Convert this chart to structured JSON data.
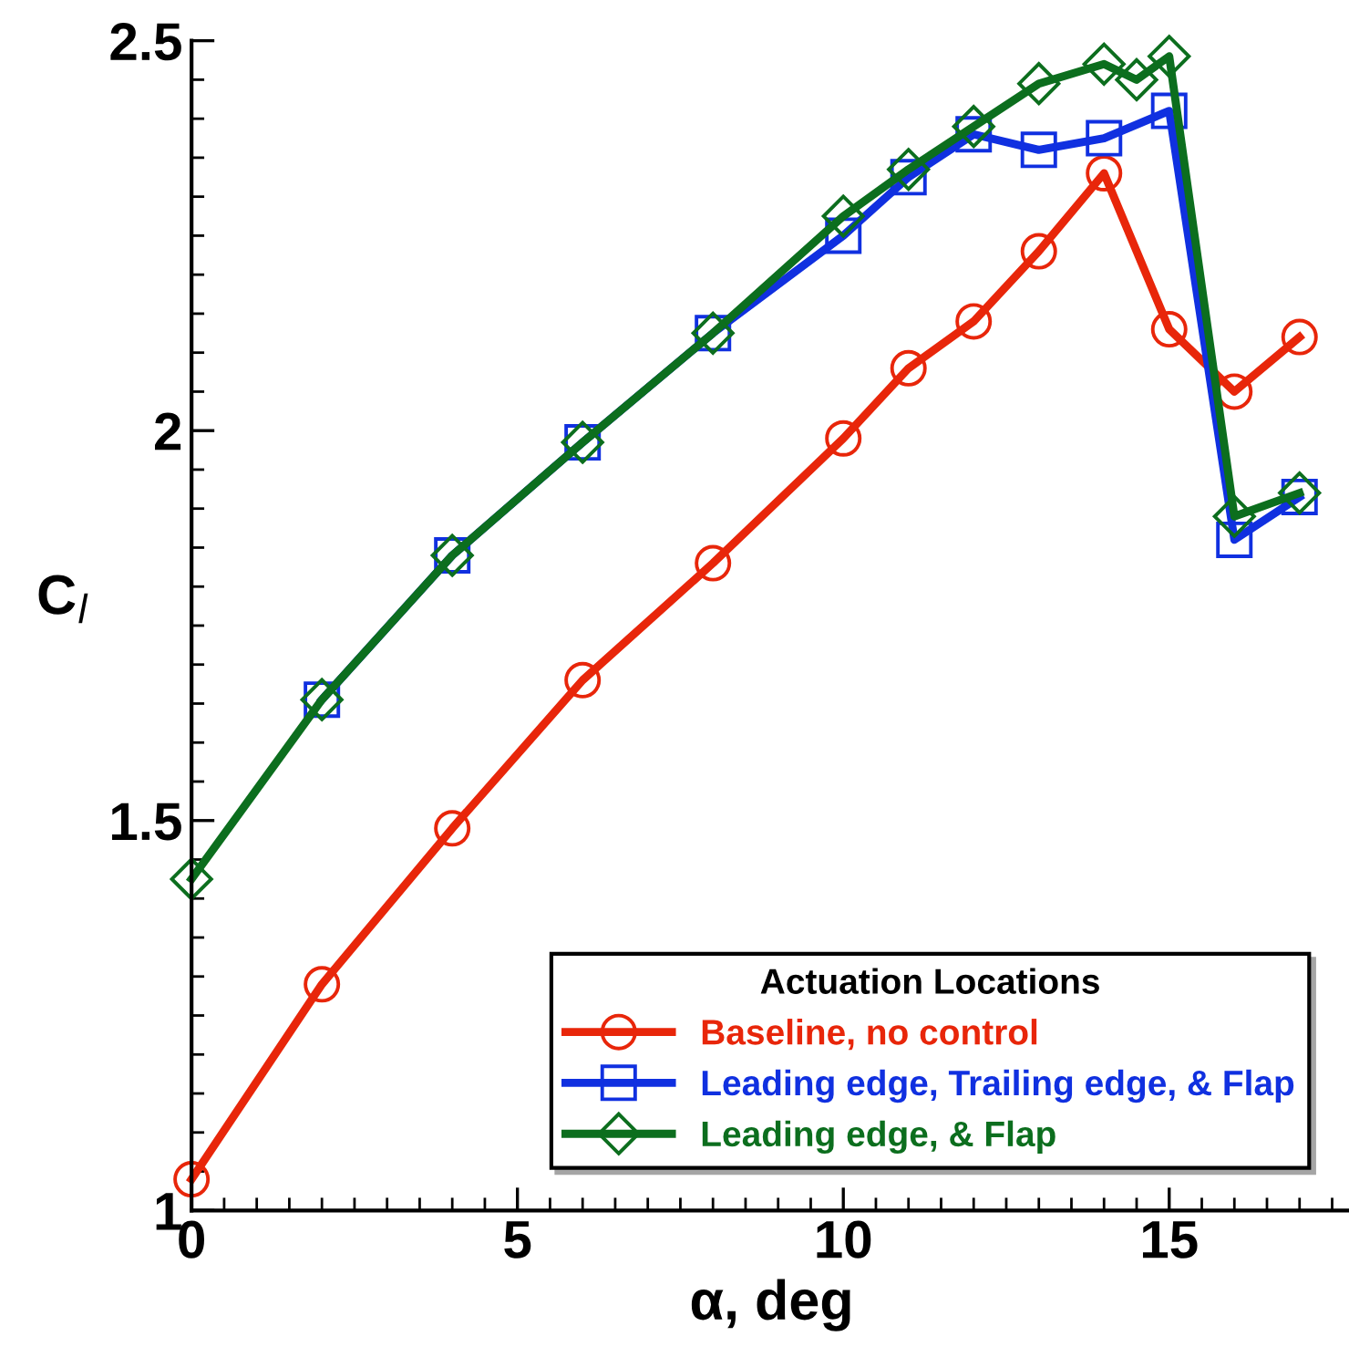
{
  "chart_data": {
    "type": "line",
    "xlabel": "α, deg",
    "ylabel": "C$_{l}$",
    "legend_title": "Actuation Locations",
    "legend": "bottom right",
    "line_style": "solid",
    "grid": false,
    "xlim": [
      0,
      17.8
    ],
    "xticks": [
      0,
      5,
      10,
      15
    ],
    "ylim": [
      1,
      2.5
    ],
    "yticks": [
      1,
      1.5,
      2,
      2.5
    ],
    "series": [
      {
        "name": "Baseline, no control",
        "color": "#e8260a",
        "marker": "circle",
        "x": [
          0,
          2,
          4,
          6,
          8,
          10,
          11,
          12,
          13,
          14,
          15,
          16,
          17
        ],
        "values": [
          1.04,
          1.29,
          1.49,
          1.68,
          1.83,
          1.99,
          2.08,
          2.14,
          2.23,
          2.33,
          2.13,
          2.05,
          2.12
        ]
      },
      {
        "name": "Leading edge, Trailing edge, & Flap",
        "color": "#1030e0",
        "marker": "square",
        "x": [
          2,
          4,
          6,
          8,
          10,
          11,
          12,
          13,
          14,
          15,
          16,
          17
        ],
        "values": [
          1.655,
          1.84,
          1.985,
          2.125,
          2.25,
          2.325,
          2.38,
          2.36,
          2.375,
          2.41,
          1.86,
          1.915
        ]
      },
      {
        "name": "Leading edge, & Flap",
        "color": "#0c6e1e",
        "marker": "diamond",
        "x": [
          0,
          2,
          4,
          6,
          8,
          10,
          11,
          12,
          13,
          14,
          14.5,
          15,
          16,
          17
        ],
        "values": [
          1.425,
          1.655,
          1.84,
          1.985,
          2.125,
          2.275,
          2.335,
          2.39,
          2.445,
          2.47,
          2.45,
          2.48,
          1.89,
          1.92
        ]
      }
    ]
  }
}
